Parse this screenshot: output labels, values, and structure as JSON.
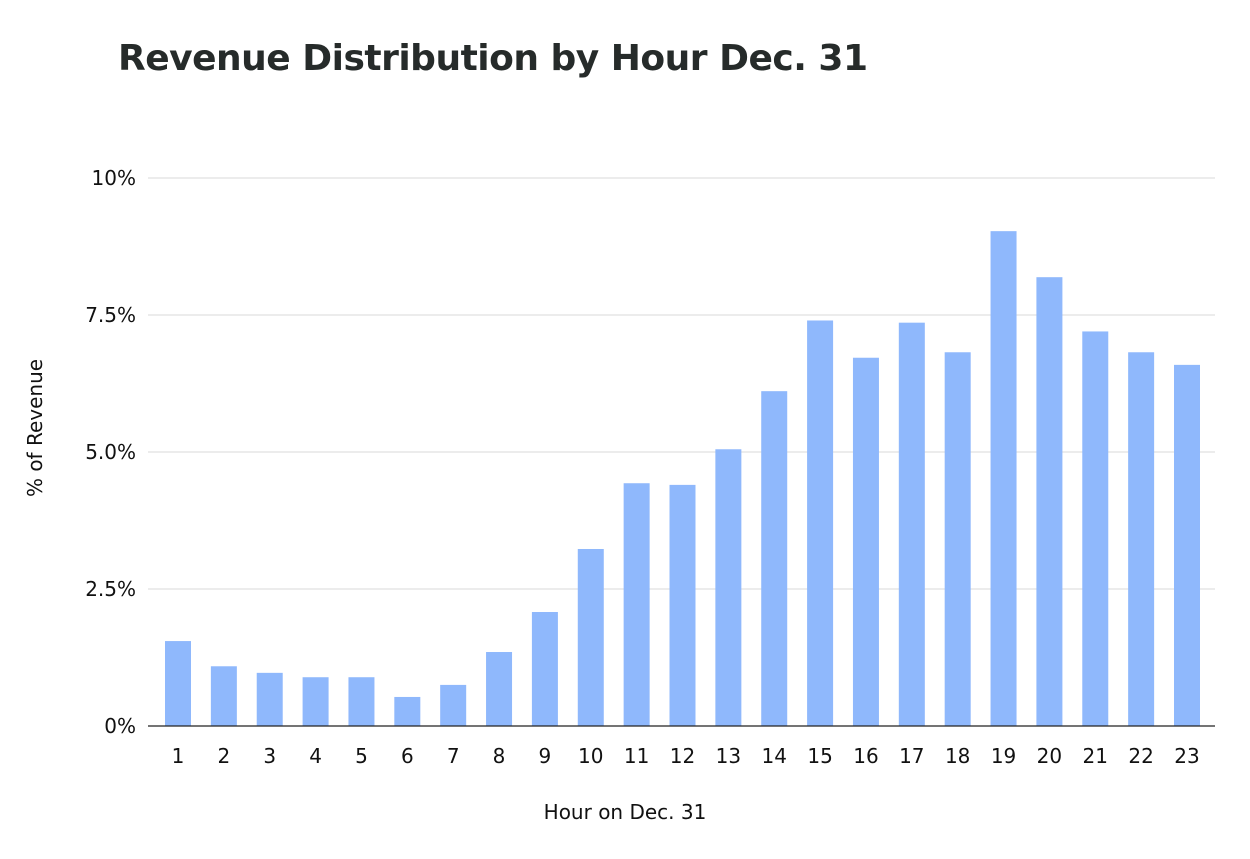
{
  "chart_data": {
    "type": "bar",
    "title": "Revenue Distribution by Hour Dec. 31",
    "xlabel": "Hour on Dec. 31",
    "ylabel": "% of Revenue",
    "categories": [
      "1",
      "2",
      "3",
      "4",
      "5",
      "6",
      "7",
      "8",
      "9",
      "10",
      "11",
      "12",
      "13",
      "14",
      "15",
      "16",
      "17",
      "18",
      "19",
      "20",
      "21",
      "22",
      "23"
    ],
    "values": [
      1.55,
      1.09,
      0.97,
      0.89,
      0.89,
      0.53,
      0.75,
      1.35,
      2.08,
      3.23,
      4.43,
      4.4,
      5.05,
      6.11,
      7.4,
      6.72,
      7.36,
      6.82,
      9.03,
      8.19,
      7.2,
      6.82,
      6.59
    ],
    "ylim": [
      0,
      10
    ],
    "yticks": [
      0,
      2.5,
      5,
      7.5,
      10
    ],
    "ytick_labels": [
      "0%",
      "2.5%",
      "5.0%",
      "7.5%",
      "10%"
    ],
    "grid": true,
    "legend": "none",
    "bar_color": "#8fb8fc",
    "grid_color": "#d9d9d9"
  }
}
